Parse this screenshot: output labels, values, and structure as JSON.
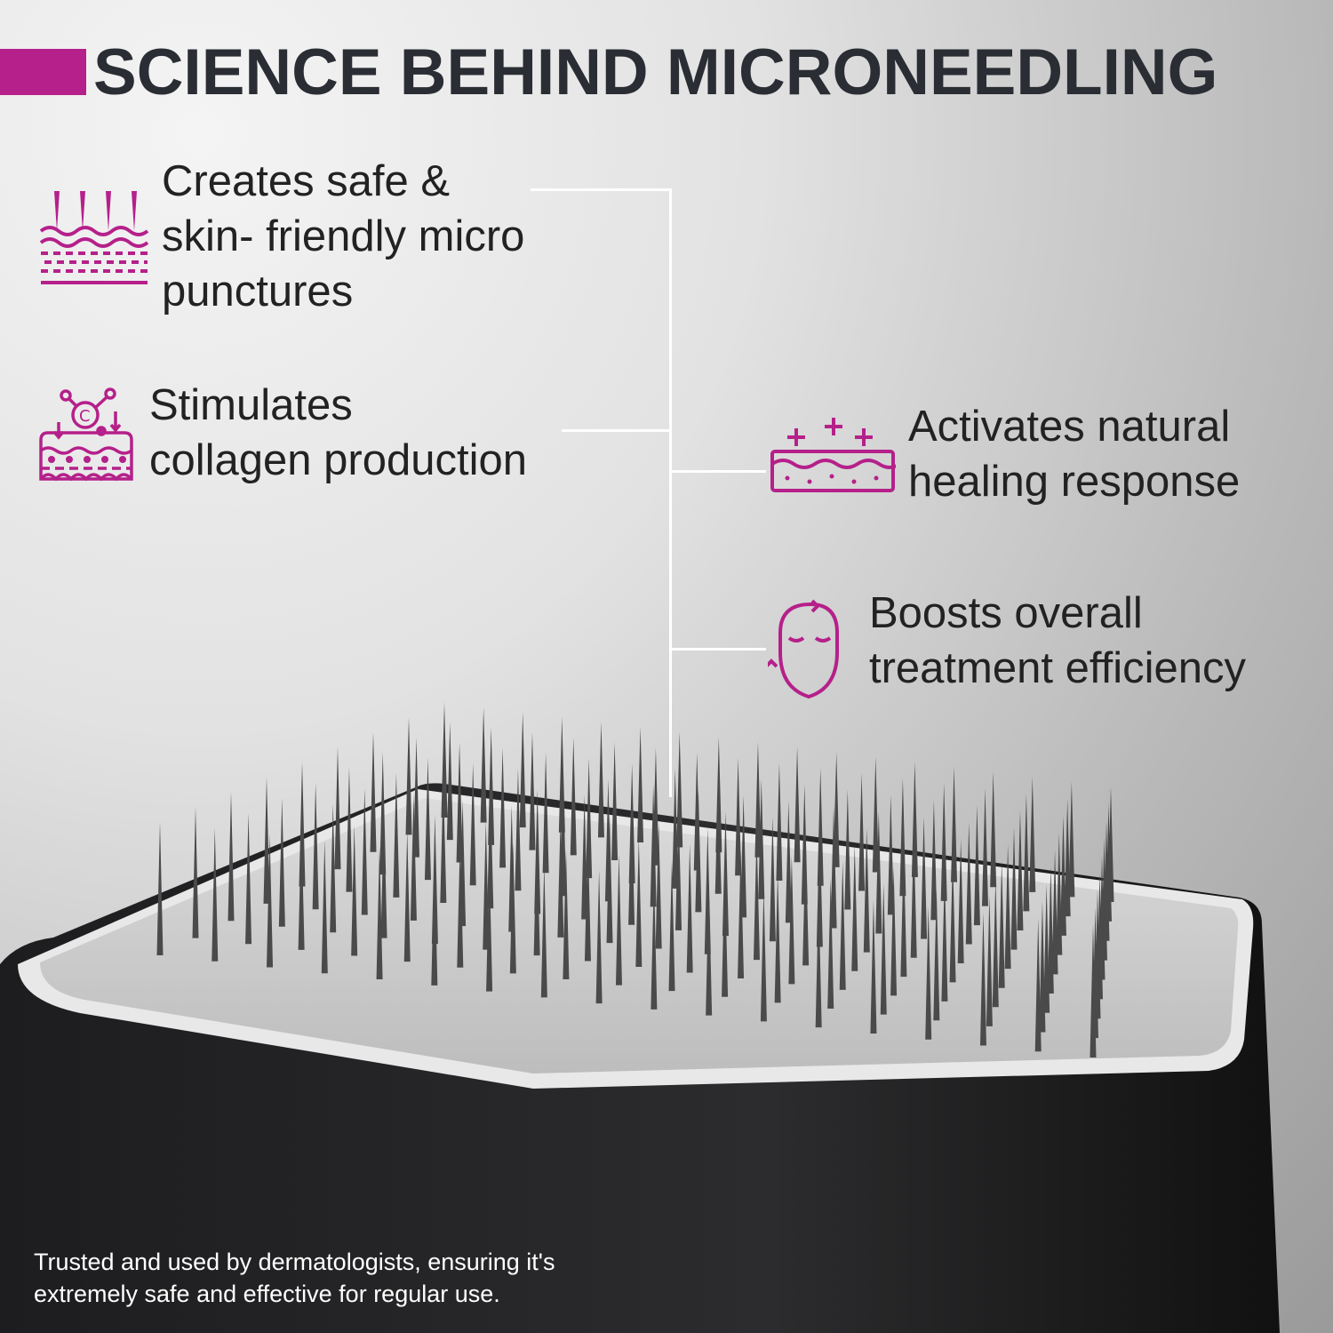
{
  "title": "SCIENCE BEHIND MICRONEEDLING",
  "accent_color": "#b5208a",
  "features": [
    {
      "icon": "skin-needles-icon",
      "lines": [
        "Creates safe &",
        "skin- friendly micro",
        "punctures"
      ]
    },
    {
      "icon": "collagen-skin-icon",
      "lines": [
        "Stimulates",
        "collagen production"
      ]
    },
    {
      "icon": "healing-skin-icon",
      "lines": [
        "Activates natural",
        "healing response"
      ]
    },
    {
      "icon": "face-cycle-icon",
      "lines": [
        "Boosts overall",
        "treatment efficiency"
      ]
    }
  ],
  "footer": [
    "Trusted and used by dermatologists, ensuring it's",
    "extremely safe and effective for regular use."
  ]
}
